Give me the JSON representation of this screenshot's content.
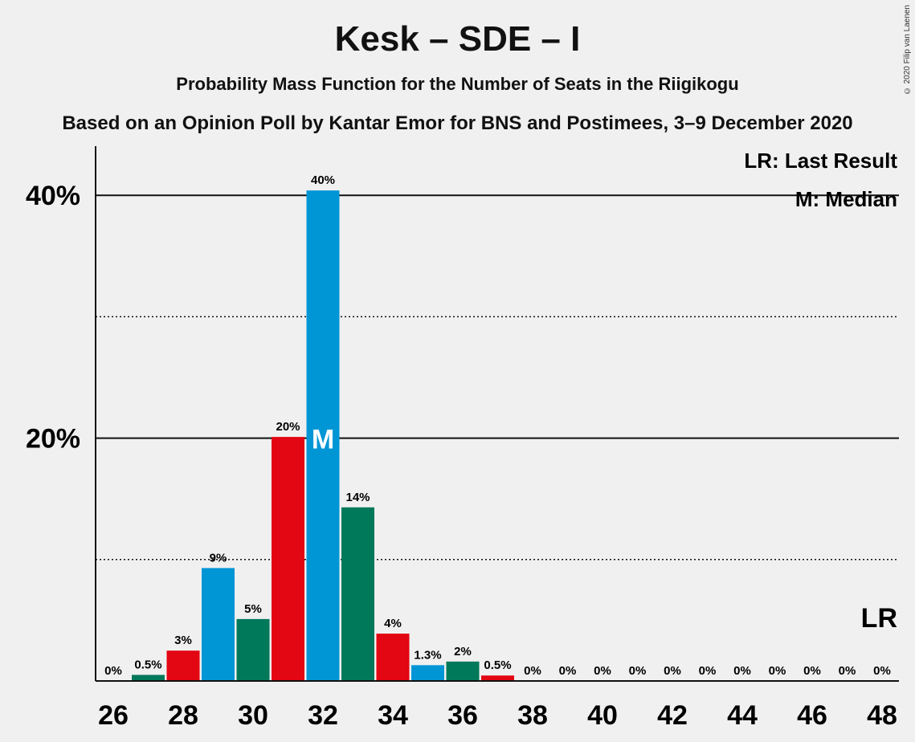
{
  "title": "Kesk – SDE – I",
  "subtitle": "Probability Mass Function for the Number of Seats in the Riigikogu",
  "poll": "Based on an Opinion Poll by Kantar Emor for BNS and Postimees, 3–9 December 2020",
  "copyright": "© 2020 Filip van Laenen",
  "legend": {
    "last_result": "LR: Last Result",
    "median": "M: Median"
  },
  "markers": {
    "median": "M",
    "last_result": "LR"
  },
  "colors": {
    "kesk": "#0096d6",
    "sde": "#e30613",
    "isamaa": "#00785a",
    "median_text": "#ffffff"
  },
  "chart_data": {
    "type": "bar",
    "x": [
      26,
      27,
      28,
      29,
      30,
      31,
      32,
      33,
      34,
      35,
      36,
      37,
      38,
      39,
      40,
      41,
      42,
      43,
      44,
      45,
      46,
      47,
      48
    ],
    "values": [
      0,
      0.5,
      2.5,
      9.3,
      5.1,
      20.1,
      40.4,
      14.3,
      3.9,
      1.3,
      1.6,
      0.45,
      0,
      0,
      0,
      0,
      0,
      0,
      0,
      0,
      0,
      0,
      0
    ],
    "labels": [
      "0%",
      "0.5%",
      "3%",
      "9%",
      "5%",
      "20%",
      "40%",
      "14%",
      "4%",
      "1.3%",
      "2%",
      "0.5%",
      "0%",
      "0%",
      "0%",
      "0%",
      "0%",
      "0%",
      "0%",
      "0%",
      "0%",
      "0%",
      "0%"
    ],
    "colors": [
      "#0096d6",
      "#00785a",
      "#e30613",
      "#0096d6",
      "#00785a",
      "#e30613",
      "#0096d6",
      "#00785a",
      "#e30613",
      "#0096d6",
      "#00785a",
      "#e30613",
      "#0096d6",
      "#00785a",
      "#e30613",
      "#0096d6",
      "#00785a",
      "#e30613",
      "#0096d6",
      "#00785a",
      "#e30613",
      "#0096d6",
      "#00785a"
    ],
    "x_ticks": [
      26,
      28,
      30,
      32,
      34,
      36,
      38,
      40,
      42,
      44,
      46,
      48
    ],
    "y_ticks": [
      {
        "value": 20,
        "label": "20%"
      },
      {
        "value": 40,
        "label": "40%"
      }
    ],
    "y_minor_grid": [
      10,
      30
    ],
    "ylim": [
      0,
      44
    ],
    "median": 32,
    "last_result": 48
  }
}
